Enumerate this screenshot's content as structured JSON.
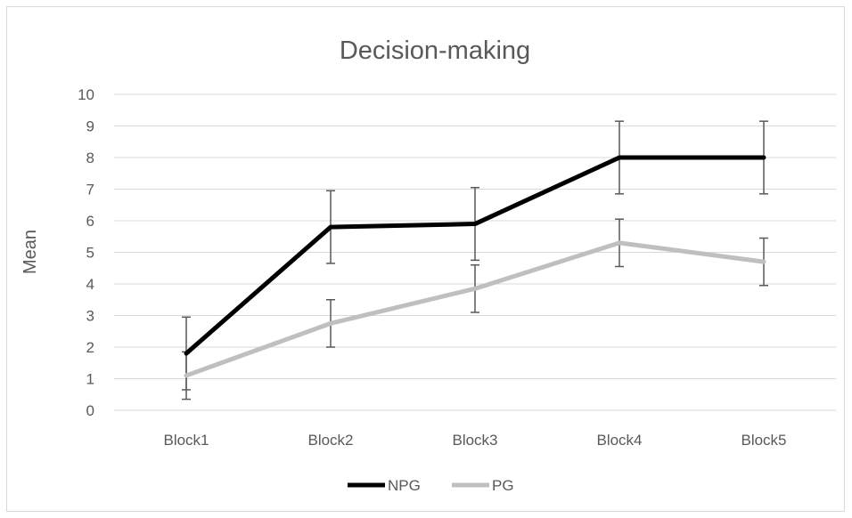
{
  "chart_data": {
    "type": "line",
    "title": "Decision-making",
    "xlabel": "",
    "ylabel": "Mean",
    "categories": [
      "Block1",
      "Block2",
      "Block3",
      "Block4",
      "Block5"
    ],
    "ylim": [
      0,
      10
    ],
    "yticks": [
      0,
      1,
      2,
      3,
      4,
      5,
      6,
      7,
      8,
      9,
      10
    ],
    "grid": "horizontal",
    "legend_position": "bottom",
    "series": [
      {
        "name": "NPG",
        "color": "#000000",
        "values": [
          1.8,
          5.8,
          5.9,
          8.0,
          8.0
        ],
        "error": [
          1.15,
          1.15,
          1.15,
          1.15,
          1.15
        ]
      },
      {
        "name": "PG",
        "color": "#bfbfbf",
        "values": [
          1.1,
          2.75,
          3.85,
          5.3,
          4.7
        ],
        "error": [
          0.75,
          0.75,
          0.75,
          0.75,
          0.75
        ]
      }
    ],
    "error_bar_color": "#595959"
  }
}
